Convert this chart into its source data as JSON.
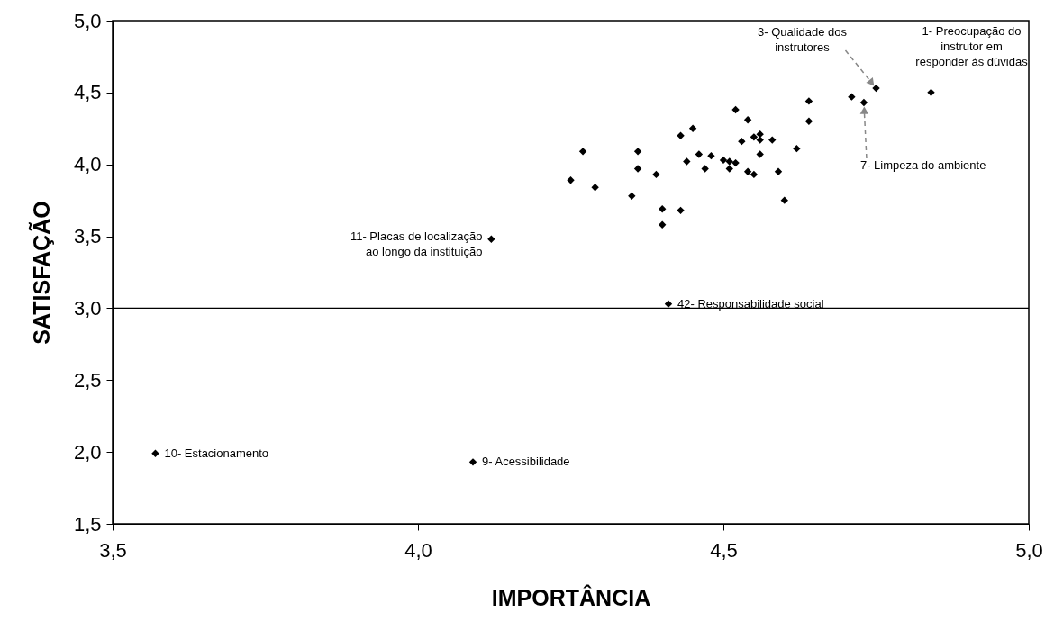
{
  "chart_data": {
    "type": "scatter",
    "xlabel": "IMPORTÂNCIA",
    "ylabel": "SATISFAÇÃO",
    "xlim": [
      3.5,
      5.0
    ],
    "ylim": [
      1.5,
      5.0
    ],
    "xticks": [
      {
        "value": 3.5,
        "label": "3,5"
      },
      {
        "value": 4.0,
        "label": "4,0"
      },
      {
        "value": 4.5,
        "label": "4,5"
      },
      {
        "value": 5.0,
        "label": "5,0"
      }
    ],
    "yticks": [
      {
        "value": 1.5,
        "label": "1,5"
      },
      {
        "value": 2.0,
        "label": "2,0"
      },
      {
        "value": 2.5,
        "label": "2,5"
      },
      {
        "value": 3.0,
        "label": "3,0"
      },
      {
        "value": 3.5,
        "label": "3,5"
      },
      {
        "value": 4.0,
        "label": "4,0"
      },
      {
        "value": 4.5,
        "label": "4,5"
      },
      {
        "value": 5.0,
        "label": "5,0"
      }
    ],
    "marker": "diamond",
    "grid": false,
    "legend": false,
    "series": [
      {
        "color": "#000000",
        "x": [
          4.27,
          4.25,
          4.29,
          4.36,
          4.36,
          4.39,
          4.35,
          4.4,
          4.43,
          4.4,
          4.43,
          4.45,
          4.46,
          4.44,
          4.47,
          4.48,
          4.5,
          4.51,
          4.51,
          4.52,
          4.52,
          4.54,
          4.53,
          4.55,
          4.56,
          4.56,
          4.58,
          4.56,
          4.54,
          4.55,
          4.59,
          4.6,
          4.62,
          4.64,
          4.64,
          4.71,
          4.73,
          4.75,
          4.84,
          4.12,
          4.41,
          3.57,
          4.09
        ],
        "values": [
          4.09,
          3.89,
          3.84,
          4.09,
          3.97,
          3.93,
          3.78,
          3.69,
          3.68,
          3.58,
          4.2,
          4.25,
          4.07,
          4.02,
          3.97,
          4.06,
          4.03,
          4.02,
          3.97,
          4.01,
          4.38,
          4.31,
          4.16,
          4.19,
          4.17,
          4.21,
          4.17,
          4.07,
          3.95,
          3.93,
          3.95,
          3.75,
          4.11,
          4.44,
          4.3,
          4.47,
          4.43,
          4.53,
          4.5,
          3.48,
          3.03,
          1.99,
          1.93
        ]
      }
    ],
    "ref_lines": [
      {
        "axis": "y",
        "value": 3.0,
        "color": "#000000",
        "line_style": "solid"
      }
    ],
    "annotations": [
      {
        "text": "1- Preocupação do\ninstrutor em\nresponder às dúvidas",
        "x": 4.84,
        "y": 4.5
      },
      {
        "text": "3- Qualidade dos\ninstrutores",
        "x": 4.75,
        "y": 4.53
      },
      {
        "text": "7- Limpeza do ambiente",
        "x": 4.73,
        "y": 4.43
      },
      {
        "text": "11- Placas de localização\nao longo da instituição",
        "x": 4.12,
        "y": 3.48
      },
      {
        "text": "42- Responsabilidade social",
        "x": 4.41,
        "y": 3.03
      },
      {
        "text": "10- Estacionamento",
        "x": 3.57,
        "y": 1.99
      },
      {
        "text": "9- Acessibilidade",
        "x": 4.09,
        "y": 1.93
      }
    ]
  }
}
